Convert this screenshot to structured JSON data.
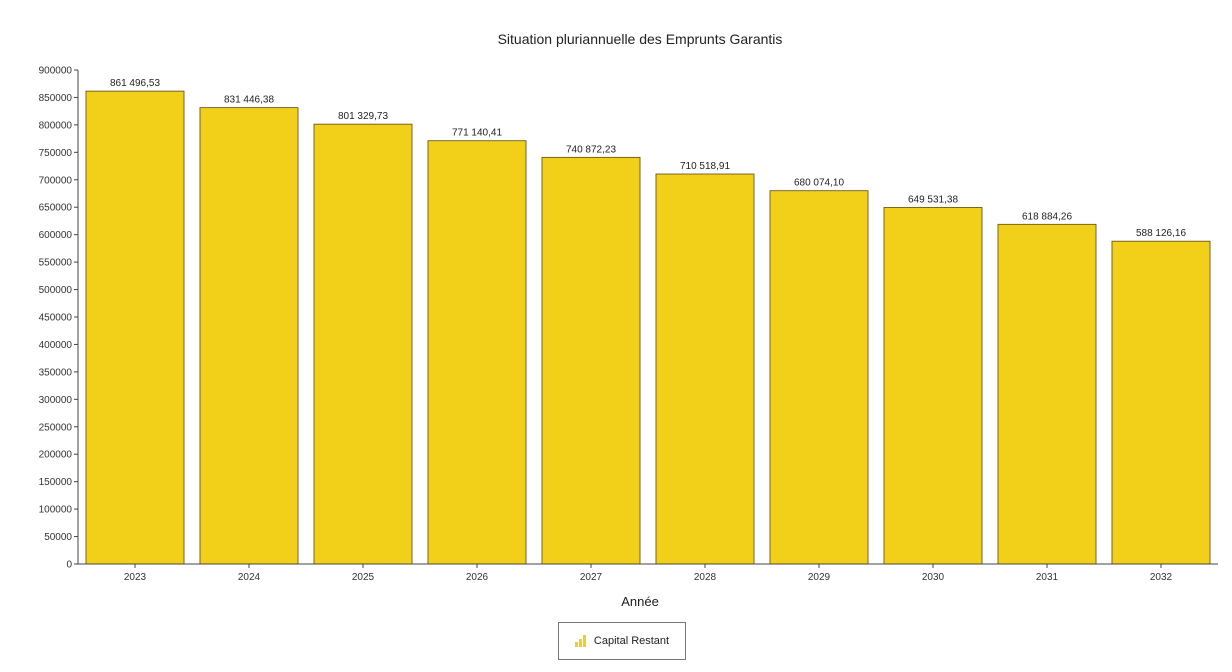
{
  "chart_data": {
    "type": "bar",
    "title": "Situation pluriannuelle des Emprunts Garantis",
    "xlabel": "Année",
    "ylabel": "",
    "categories": [
      "2023",
      "2024",
      "2025",
      "2026",
      "2027",
      "2028",
      "2029",
      "2030",
      "2031",
      "2032"
    ],
    "series": [
      {
        "name": "Capital Restant",
        "values": [
          861496.53,
          831446.38,
          801329.73,
          771140.41,
          740872.23,
          710518.91,
          680074.1,
          649531.38,
          618884.26,
          588126.16
        ],
        "labels": [
          "861 496,53",
          "831 446,38",
          "801 329,73",
          "771 140,41",
          "740 872,23",
          "710 518,91",
          "680 074,10",
          "649 531,38",
          "618 884,26",
          "588 126,16"
        ],
        "color": "#F2CF19"
      }
    ],
    "ylim": [
      0,
      900000
    ],
    "yticks": [
      "0",
      "50000",
      "100000",
      "150000",
      "200000",
      "250000",
      "300000",
      "350000",
      "400000",
      "450000",
      "500000",
      "550000",
      "600000",
      "650000",
      "700000",
      "750000",
      "800000",
      "850000",
      "900000"
    ],
    "grid": false,
    "legend_position": "bottom-center"
  }
}
